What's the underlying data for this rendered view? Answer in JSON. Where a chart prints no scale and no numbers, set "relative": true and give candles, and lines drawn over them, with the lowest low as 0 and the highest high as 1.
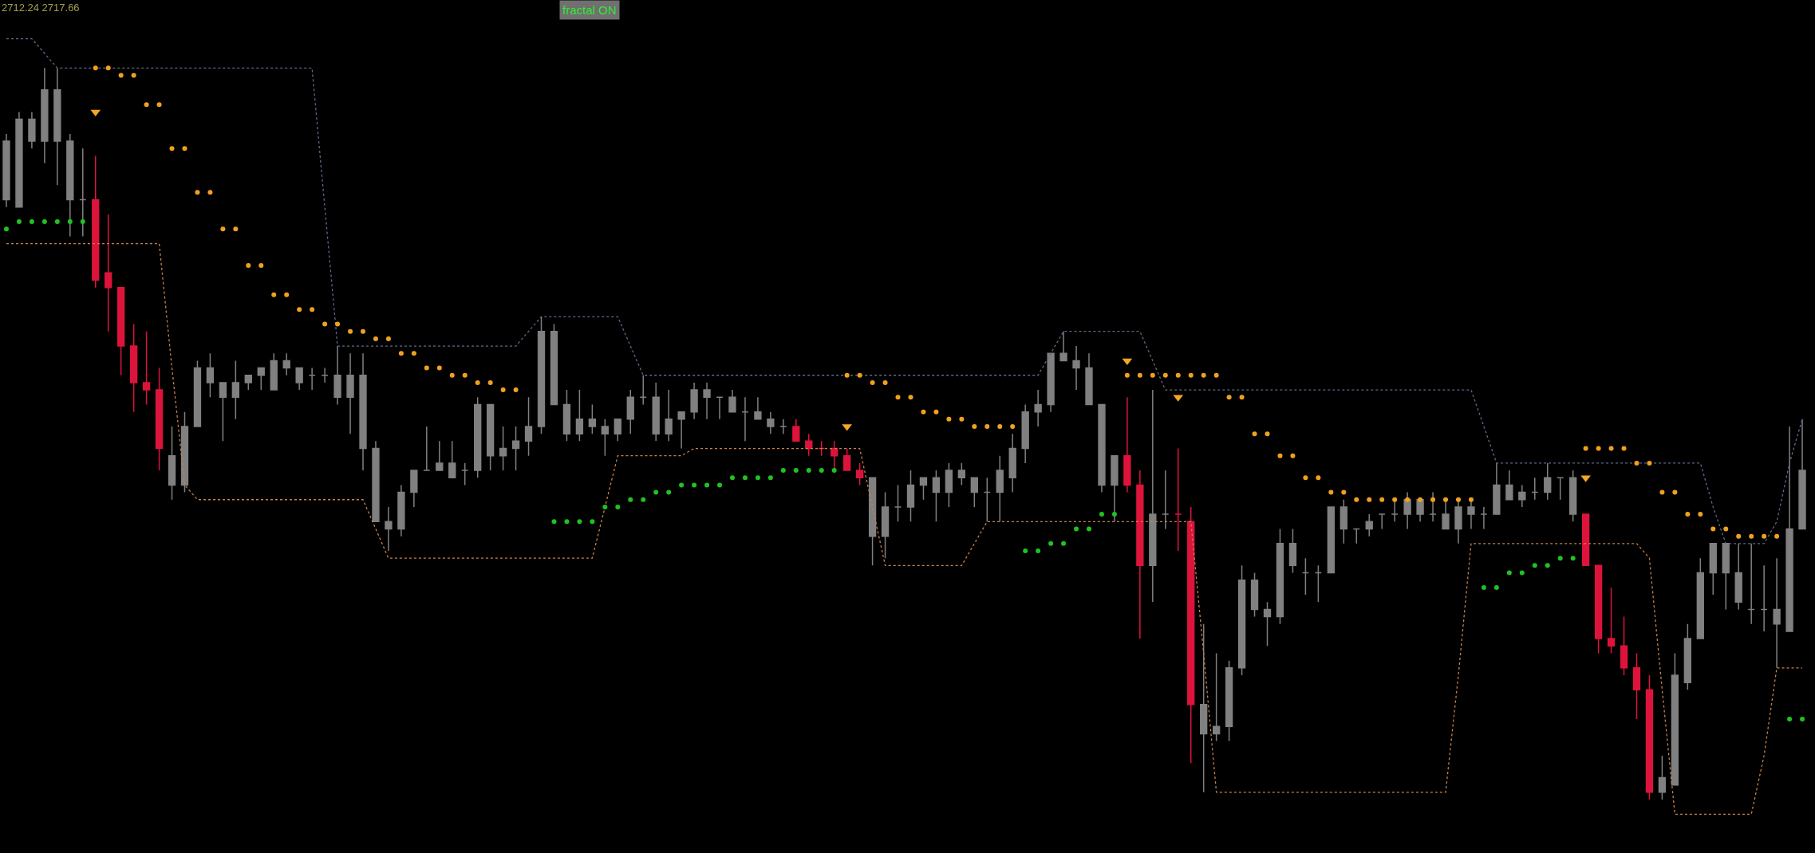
{
  "chart_data": {
    "type": "candlestick",
    "relative": true,
    "annotations": [
      "2712.24 2717.66",
      "fractal ON"
    ],
    "categories": [
      null,
      null,
      null,
      null,
      null,
      null,
      null,
      null,
      null,
      null,
      null,
      null,
      null,
      null,
      null,
      null,
      null,
      null,
      null,
      null,
      null,
      null,
      null,
      null,
      null,
      null,
      null,
      null,
      null,
      null,
      null,
      null,
      null,
      null,
      null,
      null,
      null,
      null,
      null,
      null,
      null,
      null,
      null,
      null,
      null,
      null,
      null,
      null,
      null,
      null,
      null,
      null,
      null,
      null,
      null,
      null,
      null,
      null,
      null,
      null,
      null,
      null,
      null,
      null,
      null,
      null,
      null,
      null,
      null,
      null,
      null,
      null,
      null,
      null,
      null,
      null,
      null,
      null,
      null,
      null,
      null,
      null,
      null,
      null,
      null,
      null,
      null,
      null,
      null,
      null,
      null,
      null,
      null,
      null,
      null,
      null,
      null,
      null,
      null,
      null,
      null,
      null,
      null,
      null,
      null,
      null,
      null,
      null,
      null,
      null,
      null,
      null,
      null,
      null,
      null,
      null,
      null,
      null,
      null,
      null,
      null,
      null,
      null,
      null,
      null,
      null,
      null,
      null,
      null,
      null,
      null,
      null,
      null,
      null,
      null,
      null,
      null,
      null,
      null,
      null,
      null,
      null
    ],
    "ohlc": [
      [
        0.82,
        0.91,
        0.81,
        0.9
      ],
      [
        0.81,
        0.94,
        0.81,
        0.93
      ],
      [
        0.9,
        0.94,
        0.89,
        0.93
      ],
      [
        0.9,
        1.0,
        0.87,
        0.97
      ],
      [
        0.9,
        1.0,
        0.84,
        0.97
      ],
      [
        0.82,
        0.91,
        0.77,
        0.9
      ],
      [
        0.82,
        0.89,
        0.77,
        0.82
      ],
      [
        0.82,
        0.88,
        0.7,
        0.71
      ],
      [
        0.72,
        0.8,
        0.64,
        0.7
      ],
      [
        0.7,
        0.7,
        0.58,
        0.62
      ],
      [
        0.62,
        0.65,
        0.53,
        0.57
      ],
      [
        0.57,
        0.64,
        0.54,
        0.56
      ],
      [
        0.56,
        0.59,
        0.45,
        0.48
      ],
      [
        0.43,
        0.51,
        0.41,
        0.47
      ],
      [
        0.43,
        0.53,
        0.42,
        0.51
      ],
      [
        0.51,
        0.6,
        0.51,
        0.59
      ],
      [
        0.57,
        0.61,
        0.55,
        0.59
      ],
      [
        0.55,
        0.57,
        0.49,
        0.57
      ],
      [
        0.55,
        0.6,
        0.52,
        0.57
      ],
      [
        0.57,
        0.58,
        0.56,
        0.58
      ],
      [
        0.58,
        0.59,
        0.56,
        0.59
      ],
      [
        0.56,
        0.61,
        0.56,
        0.6
      ],
      [
        0.59,
        0.61,
        0.58,
        0.6
      ],
      [
        0.57,
        0.59,
        0.56,
        0.59
      ],
      [
        0.58,
        0.59,
        0.56,
        0.58
      ],
      [
        0.58,
        0.59,
        0.57,
        0.58
      ],
      [
        0.55,
        0.62,
        0.54,
        0.58
      ],
      [
        0.55,
        0.61,
        0.5,
        0.58
      ],
      [
        0.48,
        0.61,
        0.45,
        0.58
      ],
      [
        0.38,
        0.49,
        0.38,
        0.48
      ],
      [
        0.37,
        0.4,
        0.34,
        0.38
      ],
      [
        0.37,
        0.43,
        0.36,
        0.42
      ],
      [
        0.42,
        0.45,
        0.4,
        0.45
      ],
      [
        0.45,
        0.51,
        0.45,
        0.45
      ],
      [
        0.45,
        0.49,
        0.45,
        0.46
      ],
      [
        0.44,
        0.49,
        0.44,
        0.46
      ],
      [
        0.45,
        0.46,
        0.43,
        0.45
      ],
      [
        0.45,
        0.55,
        0.44,
        0.54
      ],
      [
        0.47,
        0.54,
        0.45,
        0.54
      ],
      [
        0.47,
        0.51,
        0.45,
        0.48
      ],
      [
        0.48,
        0.51,
        0.45,
        0.49
      ],
      [
        0.49,
        0.55,
        0.47,
        0.51
      ],
      [
        0.51,
        0.66,
        0.5,
        0.64
      ],
      [
        0.54,
        0.65,
        0.54,
        0.64
      ],
      [
        0.5,
        0.56,
        0.49,
        0.54
      ],
      [
        0.5,
        0.56,
        0.49,
        0.52
      ],
      [
        0.51,
        0.54,
        0.5,
        0.52
      ],
      [
        0.5,
        0.52,
        0.47,
        0.51
      ],
      [
        0.5,
        0.52,
        0.49,
        0.52
      ],
      [
        0.52,
        0.56,
        0.5,
        0.55
      ],
      [
        0.55,
        0.58,
        0.54,
        0.55
      ],
      [
        0.5,
        0.57,
        0.49,
        0.55
      ],
      [
        0.5,
        0.56,
        0.49,
        0.52
      ],
      [
        0.52,
        0.53,
        0.48,
        0.53
      ],
      [
        0.53,
        0.57,
        0.52,
        0.56
      ],
      [
        0.55,
        0.57,
        0.52,
        0.56
      ],
      [
        0.55,
        0.55,
        0.52,
        0.55
      ],
      [
        0.53,
        0.56,
        0.53,
        0.55
      ],
      [
        0.53,
        0.55,
        0.49,
        0.53
      ],
      [
        0.52,
        0.55,
        0.52,
        0.53
      ],
      [
        0.51,
        0.53,
        0.5,
        0.52
      ],
      [
        0.51,
        0.52,
        0.5,
        0.51
      ],
      [
        0.51,
        0.52,
        0.49,
        0.49
      ],
      [
        0.49,
        0.5,
        0.47,
        0.48
      ],
      [
        0.48,
        0.49,
        0.47,
        0.48
      ],
      [
        0.48,
        0.49,
        0.45,
        0.47
      ],
      [
        0.47,
        0.48,
        0.45,
        0.45
      ],
      [
        0.45,
        0.46,
        0.43,
        0.44
      ],
      [
        0.36,
        0.44,
        0.32,
        0.44
      ],
      [
        0.36,
        0.42,
        0.33,
        0.4
      ],
      [
        0.4,
        0.43,
        0.38,
        0.4
      ],
      [
        0.4,
        0.45,
        0.38,
        0.43
      ],
      [
        0.43,
        0.44,
        0.41,
        0.44
      ],
      [
        0.42,
        0.45,
        0.38,
        0.44
      ],
      [
        0.42,
        0.46,
        0.4,
        0.45
      ],
      [
        0.44,
        0.46,
        0.43,
        0.45
      ],
      [
        0.42,
        0.44,
        0.4,
        0.44
      ],
      [
        0.42,
        0.44,
        0.38,
        0.42
      ],
      [
        0.42,
        0.47,
        0.38,
        0.45
      ],
      [
        0.44,
        0.5,
        0.42,
        0.48
      ],
      [
        0.48,
        0.54,
        0.46,
        0.53
      ],
      [
        0.53,
        0.56,
        0.51,
        0.54
      ],
      [
        0.54,
        0.61,
        0.53,
        0.61
      ],
      [
        0.6,
        0.64,
        0.6,
        0.61
      ],
      [
        0.59,
        0.62,
        0.56,
        0.6
      ],
      [
        0.54,
        0.61,
        0.54,
        0.59
      ],
      [
        0.43,
        0.54,
        0.42,
        0.54
      ],
      [
        0.43,
        0.47,
        0.38,
        0.47
      ],
      [
        0.47,
        0.55,
        0.42,
        0.43
      ],
      [
        0.43,
        0.45,
        0.22,
        0.32
      ],
      [
        0.32,
        0.56,
        0.27,
        0.39
      ],
      [
        0.39,
        0.45,
        0.37,
        0.39
      ],
      [
        0.39,
        0.48,
        0.34,
        0.39
      ],
      [
        0.38,
        0.4,
        0.05,
        0.13
      ],
      [
        0.09,
        0.24,
        0.01,
        0.13
      ],
      [
        0.09,
        0.2,
        0.08,
        0.1
      ],
      [
        0.1,
        0.19,
        0.08,
        0.18
      ],
      [
        0.18,
        0.32,
        0.17,
        0.3
      ],
      [
        0.26,
        0.31,
        0.25,
        0.3
      ],
      [
        0.25,
        0.27,
        0.21,
        0.26
      ],
      [
        0.25,
        0.37,
        0.24,
        0.35
      ],
      [
        0.32,
        0.37,
        0.31,
        0.35
      ],
      [
        0.31,
        0.33,
        0.28,
        0.31
      ],
      [
        0.31,
        0.32,
        0.27,
        0.31
      ],
      [
        0.31,
        0.4,
        0.31,
        0.4
      ],
      [
        0.37,
        0.41,
        0.35,
        0.4
      ],
      [
        0.37,
        0.37,
        0.35,
        0.37
      ],
      [
        0.37,
        0.39,
        0.36,
        0.38
      ],
      [
        0.39,
        0.39,
        0.37,
        0.39
      ],
      [
        0.39,
        0.41,
        0.38,
        0.39
      ],
      [
        0.39,
        0.42,
        0.37,
        0.41
      ],
      [
        0.39,
        0.41,
        0.38,
        0.41
      ],
      [
        0.39,
        0.42,
        0.38,
        0.39
      ],
      [
        0.37,
        0.41,
        0.37,
        0.39
      ],
      [
        0.37,
        0.41,
        0.35,
        0.4
      ],
      [
        0.39,
        0.41,
        0.37,
        0.4
      ],
      [
        0.39,
        0.4,
        0.37,
        0.39
      ],
      [
        0.39,
        0.46,
        0.39,
        0.43
      ],
      [
        0.41,
        0.45,
        0.41,
        0.43
      ],
      [
        0.41,
        0.43,
        0.4,
        0.42
      ],
      [
        0.42,
        0.44,
        0.41,
        0.42
      ],
      [
        0.42,
        0.46,
        0.41,
        0.44
      ],
      [
        0.44,
        0.44,
        0.41,
        0.44
      ],
      [
        0.39,
        0.45,
        0.38,
        0.44
      ],
      [
        0.39,
        0.39,
        0.32,
        0.32
      ],
      [
        0.32,
        0.32,
        0.2,
        0.22
      ],
      [
        0.22,
        0.29,
        0.2,
        0.21
      ],
      [
        0.21,
        0.25,
        0.17,
        0.18
      ],
      [
        0.18,
        0.2,
        0.11,
        0.15
      ],
      [
        0.15,
        0.17,
        0.0,
        0.01
      ],
      [
        0.01,
        0.06,
        0.0,
        0.03
      ],
      [
        0.02,
        0.2,
        0.02,
        0.17
      ],
      [
        0.16,
        0.24,
        0.15,
        0.22
      ],
      [
        0.22,
        0.33,
        0.22,
        0.31
      ],
      [
        0.31,
        0.35,
        0.28,
        0.35
      ],
      [
        0.31,
        0.35,
        0.26,
        0.35
      ],
      [
        0.27,
        0.35,
        0.26,
        0.31
      ],
      [
        0.26,
        0.35,
        0.24,
        0.26
      ],
      [
        0.26,
        0.32,
        0.23,
        0.26
      ],
      [
        0.24,
        0.33,
        0.18,
        0.26
      ],
      [
        0.23,
        0.51,
        0.23,
        0.37
      ],
      [
        0.37,
        0.52,
        0.37,
        0.45
      ]
    ],
    "colors": [
      "#808080",
      "#808080",
      "#808080",
      "#808080",
      "#808080",
      "#808080",
      "#808080",
      "#dc143c",
      "#dc143c",
      "#dc143c",
      "#dc143c",
      "#dc143c",
      "#dc143c",
      "#808080",
      "#808080",
      "#808080",
      "#808080",
      "#808080",
      "#808080",
      "#808080",
      "#808080",
      "#808080",
      "#808080",
      "#808080",
      "#808080",
      "#808080",
      "#808080",
      "#808080",
      "#808080",
      "#808080",
      "#808080",
      "#808080",
      "#808080",
      "#808080",
      "#808080",
      "#808080",
      "#808080",
      "#808080",
      "#808080",
      "#808080",
      "#808080",
      "#808080",
      "#808080",
      "#808080",
      "#808080",
      "#808080",
      "#808080",
      "#808080",
      "#808080",
      "#808080",
      "#808080",
      "#808080",
      "#808080",
      "#808080",
      "#808080",
      "#808080",
      "#808080",
      "#808080",
      "#808080",
      "#808080",
      "#808080",
      "#808080",
      "#dc143c",
      "#dc143c",
      "#dc143c",
      "#dc143c",
      "#dc143c",
      "#dc143c",
      "#808080",
      "#808080",
      "#808080",
      "#808080",
      "#808080",
      "#808080",
      "#808080",
      "#808080",
      "#808080",
      "#808080",
      "#808080",
      "#808080",
      "#808080",
      "#808080",
      "#808080",
      "#808080",
      "#808080",
      "#808080",
      "#808080",
      "#808080",
      "#dc143c",
      "#dc143c",
      "#808080",
      "#808080",
      "#dc143c",
      "#dc143c",
      "#808080",
      "#808080",
      "#808080",
      "#808080",
      "#808080",
      "#808080",
      "#808080",
      "#808080",
      "#808080",
      "#808080",
      "#808080",
      "#808080",
      "#808080",
      "#808080",
      "#808080",
      "#808080",
      "#808080",
      "#808080",
      "#808080",
      "#808080",
      "#808080",
      "#808080",
      "#808080",
      "#808080",
      "#808080",
      "#808080",
      "#808080",
      "#808080",
      "#808080",
      "#808080",
      "#dc143c",
      "#dc143c",
      "#dc143c",
      "#dc143c",
      "#dc143c",
      "#dc143c",
      "#808080",
      "#808080",
      "#808080",
      "#808080",
      "#808080",
      "#808080",
      "#808080",
      "#808080",
      "#808080",
      "#808080",
      "#808080",
      "#808080"
    ],
    "series": [
      {
        "type": "line",
        "color": "#5c6a8c",
        "line_style": "dotted",
        "marker": "none",
        "values": [
          1.04,
          1.04,
          1.04,
          1.02,
          1.0,
          1.0,
          1.0,
          1.0,
          1.0,
          1.0,
          1.0,
          1.0,
          1.0,
          1.0,
          1.0,
          1.0,
          1.0,
          1.0,
          1.0,
          1.0,
          1.0,
          1.0,
          1.0,
          1.0,
          1.0,
          0.81,
          0.62,
          0.62,
          0.62,
          0.62,
          0.62,
          0.62,
          0.62,
          0.62,
          0.62,
          0.62,
          0.62,
          0.62,
          0.62,
          0.62,
          0.62,
          0.64,
          0.66,
          0.66,
          0.66,
          0.66,
          0.66,
          0.66,
          0.66,
          0.62,
          0.58,
          0.58,
          0.58,
          0.58,
          0.58,
          0.58,
          0.58,
          0.58,
          0.58,
          0.58,
          0.58,
          0.58,
          0.58,
          0.58,
          0.58,
          0.58,
          0.58,
          0.58,
          0.58,
          0.58,
          0.58,
          0.58,
          0.58,
          0.58,
          0.58,
          0.58,
          0.58,
          0.58,
          0.58,
          0.58,
          0.58,
          0.58,
          0.61,
          0.64,
          0.64,
          0.64,
          0.64,
          0.64,
          0.64,
          0.64,
          0.6,
          0.56,
          0.56,
          0.56,
          0.56,
          0.56,
          0.56,
          0.56,
          0.56,
          0.56,
          0.56,
          0.56,
          0.56,
          0.56,
          0.56,
          0.56,
          0.56,
          0.56,
          0.56,
          0.56,
          0.56,
          0.56,
          0.56,
          0.56,
          0.56,
          0.56,
          0.51,
          0.46,
          0.46,
          0.46,
          0.46,
          0.46,
          0.46,
          0.46,
          0.46,
          0.46,
          0.46,
          0.46,
          0.46,
          0.46,
          0.46,
          0.46,
          0.46,
          0.46,
          0.4,
          0.35,
          0.35,
          0.35,
          0.35,
          0.38,
          0.46,
          0.52
        ]
      },
      {
        "type": "line",
        "color": "#c8824a",
        "line_style": "dotted",
        "marker": "none",
        "values": [
          0.76,
          0.76,
          0.76,
          0.76,
          0.76,
          0.76,
          0.76,
          0.76,
          0.76,
          0.76,
          0.76,
          0.76,
          0.76,
          0.59,
          0.43,
          0.41,
          0.41,
          0.41,
          0.41,
          0.41,
          0.41,
          0.41,
          0.41,
          0.41,
          0.41,
          0.41,
          0.41,
          0.41,
          0.41,
          0.37,
          0.33,
          0.33,
          0.33,
          0.33,
          0.33,
          0.33,
          0.33,
          0.33,
          0.33,
          0.33,
          0.33,
          0.33,
          0.33,
          0.33,
          0.33,
          0.33,
          0.33,
          0.4,
          0.47,
          0.47,
          0.47,
          0.47,
          0.47,
          0.47,
          0.48,
          0.48,
          0.48,
          0.48,
          0.48,
          0.48,
          0.48,
          0.48,
          0.48,
          0.48,
          0.48,
          0.48,
          0.48,
          0.48,
          0.4,
          0.32,
          0.32,
          0.32,
          0.32,
          0.32,
          0.32,
          0.32,
          0.35,
          0.38,
          0.38,
          0.38,
          0.38,
          0.38,
          0.38,
          0.38,
          0.38,
          0.38,
          0.38,
          0.38,
          0.38,
          0.38,
          0.38,
          0.38,
          0.38,
          0.38,
          0.2,
          0.01,
          0.01,
          0.01,
          0.01,
          0.01,
          0.01,
          0.01,
          0.01,
          0.01,
          0.01,
          0.01,
          0.01,
          0.01,
          0.01,
          0.01,
          0.01,
          0.01,
          0.01,
          0.01,
          0.17,
          0.35,
          0.35,
          0.35,
          0.35,
          0.35,
          0.35,
          0.35,
          0.35,
          0.35,
          0.35,
          0.35,
          0.35,
          0.35,
          0.35,
          0.33,
          0.15,
          -0.02,
          -0.02,
          -0.02,
          -0.02,
          -0.02,
          -0.02,
          -0.02,
          0.06,
          0.18,
          0.18,
          0.18
        ]
      },
      {
        "type": "scatter",
        "color": "#f0a020",
        "marker": "circle",
        "values": [
          null,
          null,
          null,
          null,
          null,
          null,
          null,
          1.0,
          1.0,
          0.99,
          0.99,
          0.95,
          0.95,
          0.89,
          0.89,
          0.83,
          0.83,
          0.78,
          0.78,
          0.73,
          0.73,
          0.69,
          0.69,
          0.67,
          0.67,
          0.65,
          0.65,
          0.64,
          0.64,
          0.63,
          0.63,
          0.61,
          0.61,
          0.59,
          0.59,
          0.58,
          0.58,
          0.57,
          0.57,
          0.56,
          0.56,
          null,
          null,
          null,
          null,
          null,
          null,
          null,
          null,
          null,
          null,
          null,
          null,
          null,
          null,
          null,
          null,
          null,
          null,
          null,
          null,
          null,
          null,
          null,
          null,
          null,
          0.58,
          0.58,
          0.57,
          0.57,
          0.55,
          0.55,
          0.53,
          0.53,
          0.52,
          0.52,
          0.51,
          0.51,
          0.51,
          0.51,
          null,
          null,
          null,
          null,
          null,
          null,
          null,
          null,
          0.58,
          0.58,
          0.58,
          0.58,
          0.58,
          0.58,
          0.58,
          0.58,
          0.55,
          0.55,
          0.5,
          0.5,
          0.47,
          0.47,
          0.44,
          0.44,
          0.42,
          0.42,
          0.41,
          0.41,
          0.41,
          0.41,
          0.41,
          0.41,
          0.41,
          0.41,
          0.41,
          0.41,
          null,
          null,
          null,
          null,
          null,
          null,
          null,
          null,
          0.48,
          0.48,
          0.48,
          0.48,
          0.46,
          0.46,
          0.42,
          0.42,
          0.39,
          0.39,
          0.37,
          0.37,
          0.36,
          0.36,
          0.36,
          0.36,
          null,
          null
        ]
      },
      {
        "type": "scatter",
        "color": "#22c022",
        "marker": "circle",
        "values": [
          0.78,
          0.79,
          0.79,
          0.79,
          0.79,
          0.79,
          0.79,
          null,
          null,
          null,
          null,
          null,
          null,
          null,
          null,
          null,
          null,
          null,
          null,
          null,
          null,
          null,
          null,
          null,
          null,
          null,
          null,
          null,
          null,
          null,
          null,
          null,
          null,
          null,
          null,
          null,
          null,
          null,
          null,
          null,
          null,
          null,
          null,
          0.38,
          0.38,
          0.38,
          0.38,
          0.4,
          0.4,
          0.41,
          0.41,
          0.42,
          0.42,
          0.43,
          0.43,
          0.43,
          0.43,
          0.44,
          0.44,
          0.44,
          0.44,
          0.45,
          0.45,
          0.45,
          0.45,
          0.45,
          null,
          null,
          null,
          null,
          null,
          null,
          null,
          null,
          null,
          null,
          null,
          null,
          null,
          null,
          0.34,
          0.34,
          0.35,
          0.35,
          0.37,
          0.37,
          0.39,
          0.39,
          null,
          null,
          null,
          null,
          null,
          null,
          null,
          null,
          null,
          null,
          null,
          null,
          null,
          null,
          null,
          null,
          null,
          null,
          null,
          null,
          null,
          null,
          null,
          null,
          null,
          null,
          null,
          null,
          0.29,
          0.29,
          0.31,
          0.31,
          0.32,
          0.32,
          0.33,
          0.33,
          null,
          null,
          null,
          null,
          null,
          null,
          null,
          null,
          null,
          null,
          null,
          null,
          null,
          null,
          null,
          null,
          0.11,
          0.11
        ]
      },
      {
        "type": "scatter",
        "color": "#f5a623",
        "marker": "triangle",
        "values": [
          null,
          null,
          null,
          null,
          null,
          null,
          null,
          0.94,
          null,
          null,
          null,
          null,
          null,
          null,
          null,
          null,
          null,
          null,
          null,
          null,
          null,
          null,
          null,
          null,
          null,
          null,
          null,
          null,
          null,
          null,
          null,
          null,
          null,
          null,
          null,
          null,
          null,
          null,
          null,
          null,
          null,
          null,
          null,
          null,
          null,
          null,
          null,
          null,
          null,
          null,
          null,
          null,
          null,
          null,
          null,
          null,
          null,
          null,
          null,
          null,
          null,
          null,
          null,
          null,
          null,
          null,
          0.51,
          null,
          null,
          null,
          null,
          null,
          null,
          null,
          null,
          null,
          null,
          null,
          null,
          null,
          null,
          null,
          null,
          null,
          null,
          null,
          null,
          null,
          0.6,
          null,
          null,
          null,
          0.55,
          null,
          null,
          null,
          null,
          null,
          null,
          null,
          null,
          null,
          null,
          null,
          null,
          null,
          null,
          null,
          null,
          null,
          null,
          null,
          null,
          null,
          null,
          null,
          null,
          null,
          null,
          null,
          null,
          null,
          null,
          null,
          0.44,
          null,
          null,
          null,
          null,
          null,
          null,
          null,
          null,
          null,
          null,
          null,
          null,
          null,
          null,
          null,
          null,
          null
        ]
      }
    ]
  }
}
